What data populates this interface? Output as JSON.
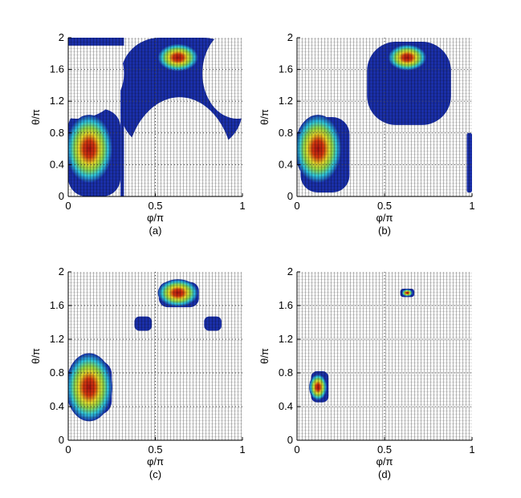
{
  "colors": {
    "blue": "#1a2fa8",
    "cyan": "#2fc4d8",
    "green": "#8ed24a",
    "yellow": "#e0d42c",
    "red": "#a51212",
    "grid": "#444444",
    "bg": "#ffffff"
  },
  "colormap": "jet",
  "chart_data": [
    {
      "type": "heatmap",
      "caption": "(a)",
      "xlabel": "φ/π",
      "ylabel": "θ/π",
      "xlim": [
        0,
        1
      ],
      "ylim": [
        0,
        2
      ],
      "xticks": [
        "0",
        "0.5",
        "1"
      ],
      "yticks": [
        "0",
        "0.4",
        "0.8",
        "1.2",
        "1.6",
        "2"
      ],
      "grid": true,
      "peaks": [
        {
          "x": 0.12,
          "y": 0.6,
          "intensity": 1.0
        },
        {
          "x": 0.63,
          "y": 1.75,
          "intensity": 0.95
        }
      ],
      "regions": [
        {
          "name": "lower-left lobe",
          "x": [
            0.0,
            0.3
          ],
          "y": [
            0.0,
            1.1
          ]
        },
        {
          "name": "upper central lobe",
          "x": [
            0.3,
            1.0
          ],
          "y": [
            0.6,
            2.0
          ]
        }
      ]
    },
    {
      "type": "heatmap",
      "caption": "(b)",
      "xlabel": "φ/π",
      "ylabel": "θ/π",
      "xlim": [
        0,
        1
      ],
      "ylim": [
        0,
        2
      ],
      "xticks": [
        "0",
        "0.5",
        "1"
      ],
      "yticks": [
        "0",
        "0.4",
        "0.8",
        "1.2",
        "1.6",
        "2"
      ],
      "grid": true,
      "peaks": [
        {
          "x": 0.12,
          "y": 0.6,
          "intensity": 1.0
        },
        {
          "x": 0.63,
          "y": 1.75,
          "intensity": 0.9
        }
      ],
      "regions": [
        {
          "name": "lower-left lobe",
          "x": [
            0.02,
            0.3
          ],
          "y": [
            0.05,
            1.0
          ]
        },
        {
          "name": "upper cross lobe",
          "x": [
            0.4,
            0.88
          ],
          "y": [
            0.9,
            1.95
          ]
        },
        {
          "name": "right edge lobe",
          "x": [
            0.97,
            1.0
          ],
          "y": [
            0.05,
            0.8
          ]
        }
      ]
    },
    {
      "type": "heatmap",
      "caption": "(c)",
      "xlabel": "φ/π",
      "ylabel": "θ/π",
      "xlim": [
        0,
        1
      ],
      "ylim": [
        0,
        2
      ],
      "xticks": [
        "0",
        "0.5",
        "1"
      ],
      "yticks": [
        "0",
        "0.4",
        "0.8",
        "1.2",
        "1.6",
        "2"
      ],
      "grid": true,
      "peaks": [
        {
          "x": 0.12,
          "y": 0.63,
          "intensity": 1.0
        },
        {
          "x": 0.63,
          "y": 1.75,
          "intensity": 0.95
        }
      ],
      "regions": [
        {
          "name": "lower-left lobe",
          "x": [
            0.02,
            0.25
          ],
          "y": [
            0.3,
            0.95
          ]
        },
        {
          "name": "upper cap",
          "x": [
            0.52,
            0.75
          ],
          "y": [
            1.58,
            1.88
          ]
        },
        {
          "name": "left side lobe",
          "x": [
            0.38,
            0.48
          ],
          "y": [
            1.3,
            1.47
          ]
        },
        {
          "name": "right side lobe",
          "x": [
            0.78,
            0.88
          ],
          "y": [
            1.3,
            1.47
          ]
        }
      ]
    },
    {
      "type": "heatmap",
      "caption": "(d)",
      "xlabel": "φ/π",
      "ylabel": "θ/π",
      "xlim": [
        0,
        1
      ],
      "ylim": [
        0,
        2
      ],
      "xticks": [
        "0",
        "0.5",
        "1"
      ],
      "yticks": [
        "0",
        "0.4",
        "0.8",
        "1.2",
        "1.6",
        "2"
      ],
      "grid": true,
      "peaks": [
        {
          "x": 0.12,
          "y": 0.63,
          "intensity": 1.0
        },
        {
          "x": 0.63,
          "y": 1.75,
          "intensity": 0.6
        }
      ],
      "regions": [
        {
          "name": "lower-left spot",
          "x": [
            0.08,
            0.18
          ],
          "y": [
            0.45,
            0.82
          ]
        },
        {
          "name": "upper spot",
          "x": [
            0.59,
            0.67
          ],
          "y": [
            1.7,
            1.8
          ]
        }
      ]
    }
  ]
}
